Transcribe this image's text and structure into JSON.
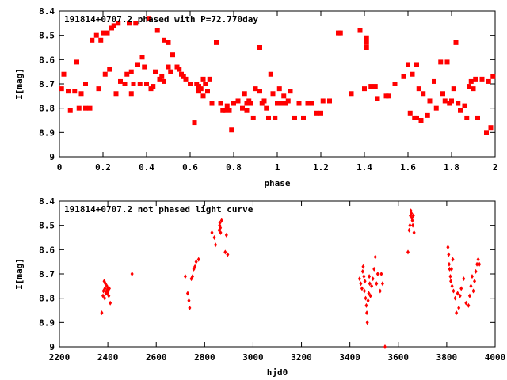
{
  "chart_data": [
    {
      "type": "scatter",
      "title": "191814+0707.2 phased with P=72.770day",
      "xlabel": "phase",
      "ylabel": "I[mag]",
      "xlim": [
        0,
        2
      ],
      "ylim": [
        8.4,
        9.0
      ],
      "y_inverted": true,
      "xticks": [
        "0",
        "0.2",
        "0.4",
        "0.6",
        "0.8",
        "1",
        "1.2",
        "1.4",
        "1.6",
        "1.8",
        "2"
      ],
      "yticks": [
        "8.4",
        "8.5",
        "8.6",
        "8.7",
        "8.8",
        "8.9",
        "9"
      ],
      "marker": "filled-square",
      "color": "#ff0000",
      "grid": false,
      "series": [
        {
          "points": [
            [
              0.01,
              8.72
            ],
            [
              0.02,
              8.66
            ],
            [
              0.04,
              8.73
            ],
            [
              0.05,
              8.81
            ],
            [
              0.07,
              8.73
            ],
            [
              0.08,
              8.61
            ],
            [
              0.09,
              8.8
            ],
            [
              0.1,
              8.74
            ],
            [
              0.12,
              8.8
            ],
            [
              0.12,
              8.7
            ],
            [
              0.14,
              8.8
            ],
            [
              0.15,
              8.52
            ],
            [
              0.17,
              8.5
            ],
            [
              0.18,
              8.72
            ],
            [
              0.19,
              8.52
            ],
            [
              0.2,
              8.49
            ],
            [
              0.21,
              8.66
            ],
            [
              0.22,
              8.49
            ],
            [
              0.23,
              8.64
            ],
            [
              0.24,
              8.47
            ],
            [
              0.25,
              8.46
            ],
            [
              0.26,
              8.74
            ],
            [
              0.27,
              8.45
            ],
            [
              0.28,
              8.69
            ],
            [
              0.3,
              8.7
            ],
            [
              0.31,
              8.66
            ],
            [
              0.32,
              8.45
            ],
            [
              0.33,
              8.65
            ],
            [
              0.33,
              8.74
            ],
            [
              0.34,
              8.7
            ],
            [
              0.35,
              8.45
            ],
            [
              0.36,
              8.62
            ],
            [
              0.37,
              8.7
            ],
            [
              0.38,
              8.59
            ],
            [
              0.39,
              8.63
            ],
            [
              0.4,
              8.7
            ],
            [
              0.41,
              8.43
            ],
            [
              0.42,
              8.72
            ],
            [
              0.43,
              8.71
            ],
            [
              0.44,
              8.65
            ],
            [
              0.45,
              8.48
            ],
            [
              0.46,
              8.68
            ],
            [
              0.47,
              8.67
            ],
            [
              0.48,
              8.52
            ],
            [
              0.48,
              8.69
            ],
            [
              0.5,
              8.53
            ],
            [
              0.5,
              8.63
            ],
            [
              0.51,
              8.65
            ],
            [
              0.52,
              8.58
            ],
            [
              0.54,
              8.63
            ],
            [
              0.55,
              8.64
            ],
            [
              0.56,
              8.66
            ],
            [
              0.57,
              8.67
            ],
            [
              0.58,
              8.68
            ],
            [
              0.6,
              8.7
            ],
            [
              0.62,
              8.86
            ],
            [
              0.63,
              8.7
            ],
            [
              0.64,
              8.71
            ],
            [
              0.64,
              8.73
            ],
            [
              0.65,
              8.72
            ],
            [
              0.66,
              8.68
            ],
            [
              0.66,
              8.75
            ],
            [
              0.67,
              8.7
            ],
            [
              0.68,
              8.73
            ],
            [
              0.69,
              8.68
            ],
            [
              0.7,
              8.78
            ],
            [
              0.72,
              8.53
            ],
            [
              0.74,
              8.78
            ],
            [
              0.75,
              8.81
            ],
            [
              0.76,
              8.81
            ],
            [
              0.77,
              8.79
            ],
            [
              0.78,
              8.81
            ],
            [
              0.79,
              8.89
            ],
            [
              0.8,
              8.78
            ],
            [
              0.82,
              8.77
            ],
            [
              0.84,
              8.8
            ],
            [
              0.85,
              8.74
            ],
            [
              0.86,
              8.78
            ],
            [
              0.86,
              8.81
            ],
            [
              0.87,
              8.77
            ],
            [
              0.88,
              8.78
            ],
            [
              0.89,
              8.84
            ],
            [
              0.9,
              8.72
            ],
            [
              0.92,
              8.55
            ],
            [
              0.92,
              8.73
            ],
            [
              0.93,
              8.78
            ],
            [
              0.94,
              8.77
            ],
            [
              0.95,
              8.8
            ],
            [
              0.96,
              8.84
            ],
            [
              0.97,
              8.66
            ],
            [
              0.98,
              8.74
            ],
            [
              0.99,
              8.84
            ],
            [
              1.0,
              8.78
            ],
            [
              1.01,
              8.72
            ],
            [
              1.02,
              8.78
            ],
            [
              1.03,
              8.75
            ],
            [
              1.04,
              8.78
            ],
            [
              1.05,
              8.77
            ],
            [
              1.06,
              8.73
            ],
            [
              1.08,
              8.84
            ],
            [
              1.1,
              8.78
            ],
            [
              1.12,
              8.84
            ],
            [
              1.14,
              8.78
            ],
            [
              1.16,
              8.78
            ],
            [
              1.18,
              8.82
            ],
            [
              1.2,
              8.82
            ],
            [
              1.21,
              8.77
            ],
            [
              1.24,
              8.77
            ],
            [
              1.28,
              8.49
            ],
            [
              1.29,
              8.49
            ],
            [
              1.34,
              8.74
            ],
            [
              1.38,
              8.48
            ],
            [
              1.4,
              8.72
            ],
            [
              1.41,
              8.51
            ],
            [
              1.41,
              8.53
            ],
            [
              1.41,
              8.55
            ],
            [
              1.43,
              8.71
            ],
            [
              1.45,
              8.71
            ],
            [
              1.46,
              8.76
            ],
            [
              1.5,
              8.75
            ],
            [
              1.51,
              8.75
            ],
            [
              1.54,
              8.7
            ],
            [
              1.58,
              8.67
            ],
            [
              1.6,
              8.62
            ],
            [
              1.61,
              8.82
            ],
            [
              1.62,
              8.66
            ],
            [
              1.63,
              8.84
            ],
            [
              1.64,
              8.62
            ],
            [
              1.64,
              8.84
            ],
            [
              1.65,
              8.72
            ],
            [
              1.66,
              8.85
            ],
            [
              1.67,
              8.74
            ],
            [
              1.69,
              8.83
            ],
            [
              1.7,
              8.77
            ],
            [
              1.72,
              8.69
            ],
            [
              1.73,
              8.8
            ],
            [
              1.75,
              8.61
            ],
            [
              1.76,
              8.74
            ],
            [
              1.77,
              8.77
            ],
            [
              1.78,
              8.61
            ],
            [
              1.79,
              8.78
            ],
            [
              1.8,
              8.77
            ],
            [
              1.81,
              8.72
            ],
            [
              1.82,
              8.53
            ],
            [
              1.83,
              8.78
            ],
            [
              1.84,
              8.81
            ],
            [
              1.86,
              8.79
            ],
            [
              1.87,
              8.84
            ],
            [
              1.88,
              8.71
            ],
            [
              1.89,
              8.69
            ],
            [
              1.9,
              8.72
            ],
            [
              1.91,
              8.68
            ],
            [
              1.92,
              8.84
            ],
            [
              1.94,
              8.68
            ],
            [
              1.96,
              8.9
            ],
            [
              1.97,
              8.69
            ],
            [
              1.98,
              8.88
            ],
            [
              1.99,
              8.67
            ]
          ]
        }
      ]
    },
    {
      "type": "scatter",
      "title": "191814+0707.2 not phased light curve",
      "xlabel": "hjd0",
      "ylabel": "I[mag]",
      "xlim": [
        2200,
        4000
      ],
      "ylim": [
        8.4,
        9.0
      ],
      "y_inverted": true,
      "xticks": [
        "2200",
        "2400",
        "2600",
        "2800",
        "3000",
        "3200",
        "3400",
        "3600",
        "3800",
        "4000"
      ],
      "yticks": [
        "8.4",
        "8.5",
        "8.6",
        "8.7",
        "8.8",
        "8.9",
        "9"
      ],
      "marker": "diamond",
      "color": "#ff0000",
      "grid": false,
      "series": [
        {
          "points": [
            [
              2375,
              8.86
            ],
            [
              2380,
              8.79
            ],
            [
              2382,
              8.77
            ],
            [
              2385,
              8.73
            ],
            [
              2387,
              8.8
            ],
            [
              2388,
              8.76
            ],
            [
              2390,
              8.74
            ],
            [
              2392,
              8.78
            ],
            [
              2395,
              8.77
            ],
            [
              2396,
              8.75
            ],
            [
              2398,
              8.78
            ],
            [
              2400,
              8.76
            ],
            [
              2402,
              8.77
            ],
            [
              2404,
              8.79
            ],
            [
              2406,
              8.76
            ],
            [
              2410,
              8.82
            ],
            [
              2500,
              8.7
            ],
            [
              2720,
              8.71
            ],
            [
              2730,
              8.78
            ],
            [
              2735,
              8.81
            ],
            [
              2738,
              8.84
            ],
            [
              2745,
              8.72
            ],
            [
              2750,
              8.71
            ],
            [
              2755,
              8.68
            ],
            [
              2760,
              8.67
            ],
            [
              2765,
              8.65
            ],
            [
              2775,
              8.64
            ],
            [
              2830,
              8.53
            ],
            [
              2840,
              8.55
            ],
            [
              2845,
              8.58
            ],
            [
              2860,
              8.52
            ],
            [
              2862,
              8.5
            ],
            [
              2863,
              8.49
            ],
            [
              2865,
              8.51
            ],
            [
              2866,
              8.53
            ],
            [
              2870,
              8.48
            ],
            [
              2885,
              8.61
            ],
            [
              2890,
              8.54
            ],
            [
              2895,
              8.62
            ],
            [
              3440,
              8.72
            ],
            [
              3445,
              8.74
            ],
            [
              3450,
              8.76
            ],
            [
              3453,
              8.69
            ],
            [
              3455,
              8.67
            ],
            [
              3458,
              8.71
            ],
            [
              3460,
              8.77
            ],
            [
              3462,
              8.73
            ],
            [
              3465,
              8.8
            ],
            [
              3468,
              8.83
            ],
            [
              3470,
              8.86
            ],
            [
              3472,
              8.9
            ],
            [
              3475,
              8.81
            ],
            [
              3478,
              8.78
            ],
            [
              3480,
              8.71
            ],
            [
              3482,
              8.74
            ],
            [
              3485,
              8.79
            ],
            [
              3490,
              8.75
            ],
            [
              3495,
              8.72
            ],
            [
              3500,
              8.68
            ],
            [
              3505,
              8.63
            ],
            [
              3510,
              8.74
            ],
            [
              3515,
              8.7
            ],
            [
              3525,
              8.77
            ],
            [
              3530,
              8.7
            ],
            [
              3535,
              8.74
            ],
            [
              3545,
              9.0
            ],
            [
              3640,
              8.61
            ],
            [
              3645,
              8.52
            ],
            [
              3648,
              8.5
            ],
            [
              3650,
              8.46
            ],
            [
              3652,
              8.44
            ],
            [
              3654,
              8.45
            ],
            [
              3656,
              8.47
            ],
            [
              3658,
              8.48
            ],
            [
              3660,
              8.5
            ],
            [
              3662,
              8.46
            ],
            [
              3665,
              8.53
            ],
            [
              3805,
              8.59
            ],
            [
              3808,
              8.62
            ],
            [
              3810,
              8.66
            ],
            [
              3812,
              8.68
            ],
            [
              3815,
              8.71
            ],
            [
              3817,
              8.73
            ],
            [
              3820,
              8.68
            ],
            [
              3822,
              8.75
            ],
            [
              3825,
              8.64
            ],
            [
              3828,
              8.77
            ],
            [
              3835,
              8.8
            ],
            [
              3840,
              8.86
            ],
            [
              3845,
              8.78
            ],
            [
              3850,
              8.84
            ],
            [
              3855,
              8.79
            ],
            [
              3860,
              8.76
            ],
            [
              3870,
              8.72
            ],
            [
              3880,
              8.82
            ],
            [
              3890,
              8.83
            ],
            [
              3895,
              8.79
            ],
            [
              3900,
              8.75
            ],
            [
              3905,
              8.71
            ],
            [
              3910,
              8.77
            ],
            [
              3915,
              8.73
            ],
            [
              3920,
              8.69
            ],
            [
              3925,
              8.66
            ],
            [
              3930,
              8.64
            ],
            [
              3935,
              8.66
            ]
          ]
        }
      ]
    }
  ]
}
